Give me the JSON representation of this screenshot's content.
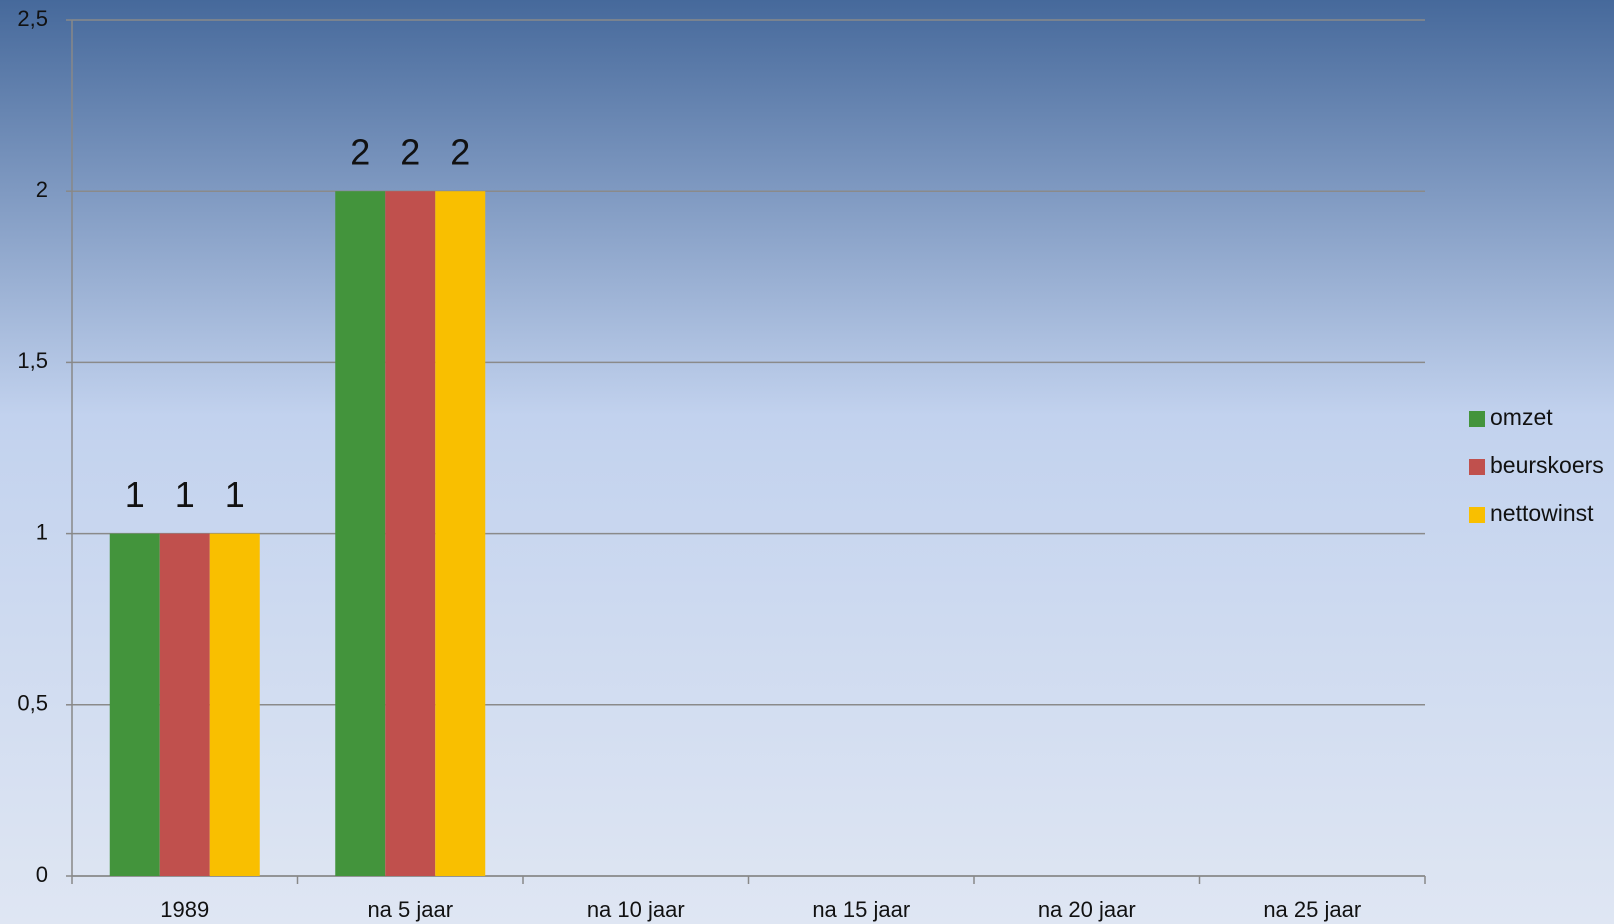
{
  "chart_data": {
    "type": "bar",
    "categories": [
      "1989",
      "na 5 jaar",
      "na 10 jaar",
      "na 15 jaar",
      "na 20 jaar",
      "na 25 jaar"
    ],
    "series": [
      {
        "name": "omzet",
        "color": "#43943c",
        "values": [
          1,
          2,
          null,
          null,
          null,
          null
        ]
      },
      {
        "name": "beurskoers",
        "color": "#c0504d",
        "values": [
          1,
          2,
          null,
          null,
          null,
          null
        ]
      },
      {
        "name": "nettowinst",
        "color": "#f9bf00",
        "values": [
          1,
          2,
          null,
          null,
          null,
          null
        ]
      }
    ],
    "ylim": [
      0,
      2.5
    ],
    "yticks": [
      0,
      {
        "value": 0.5,
        "label": "0,5"
      },
      1,
      {
        "value": 1.5,
        "label": "1,5"
      },
      2,
      {
        "value": 2.5,
        "label": "2,5"
      }
    ],
    "grid": true,
    "data_labels": true,
    "legend": "right"
  }
}
